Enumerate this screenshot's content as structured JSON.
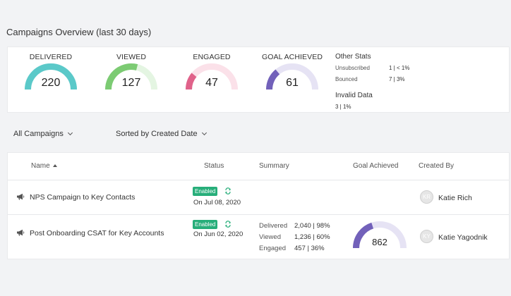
{
  "title": "Campaigns Overview (last 30 days)",
  "stats": [
    {
      "label": "DELIVERED",
      "value": "220",
      "fraction": 1.0,
      "color": "#5bc9c9",
      "track": "#dff3f3"
    },
    {
      "label": "VIEWED",
      "value": "127",
      "fraction": 0.58,
      "color": "#7ccb73",
      "track": "#e4f5e2"
    },
    {
      "label": "ENGAGED",
      "value": "47",
      "fraction": 0.22,
      "color": "#e0628a",
      "track": "#fbe1e9"
    },
    {
      "label": "GOAL ACHIEVED",
      "value": "61",
      "fraction": 0.28,
      "color": "#7261ba",
      "track": "#e6e3f4"
    }
  ],
  "other_stats": {
    "title": "Other Stats",
    "unsubscribed_label": "Unsubscribed",
    "unsubscribed_value": "1 | < 1%",
    "bounced_label": "Bounced",
    "bounced_value": "7 | 3%",
    "invalid_label": "Invalid Data",
    "invalid_value": "3 | 1%"
  },
  "filters": {
    "campaigns": "All Campaigns",
    "sort": "Sorted by Created Date"
  },
  "table": {
    "headers": {
      "name": "Name",
      "status": "Status",
      "summary": "Summary",
      "goal": "Goal Achieved",
      "created_by": "Created By"
    },
    "rows": [
      {
        "name": "NPS Campaign to Key Contacts",
        "status": "Enabled",
        "date": "On Jul 08, 2020",
        "initials": "KR",
        "creator": "Katie Rich"
      },
      {
        "name": "Post Onboarding CSAT for Key Accounts",
        "status": "Enabled",
        "date": "On Jun 02, 2020",
        "summary": {
          "delivered_label": "Delivered",
          "delivered_value": "2,040 | 98%",
          "viewed_label": "Viewed",
          "viewed_value": "1,236 | 60%",
          "engaged_label": "Engaged",
          "engaged_value": "457 | 36%"
        },
        "goal": "862",
        "goal_fraction": 0.4,
        "initials": "KY",
        "creator": "Katie Yagodnik"
      }
    ]
  },
  "colors": {
    "enabled_badge": "#27ae7a",
    "goal_gauge": "#7261ba",
    "goal_track": "#e6e3f4"
  },
  "icons": [
    "megaphone-icon",
    "refresh-icon",
    "chevron-down-icon",
    "sort-up-icon"
  ]
}
